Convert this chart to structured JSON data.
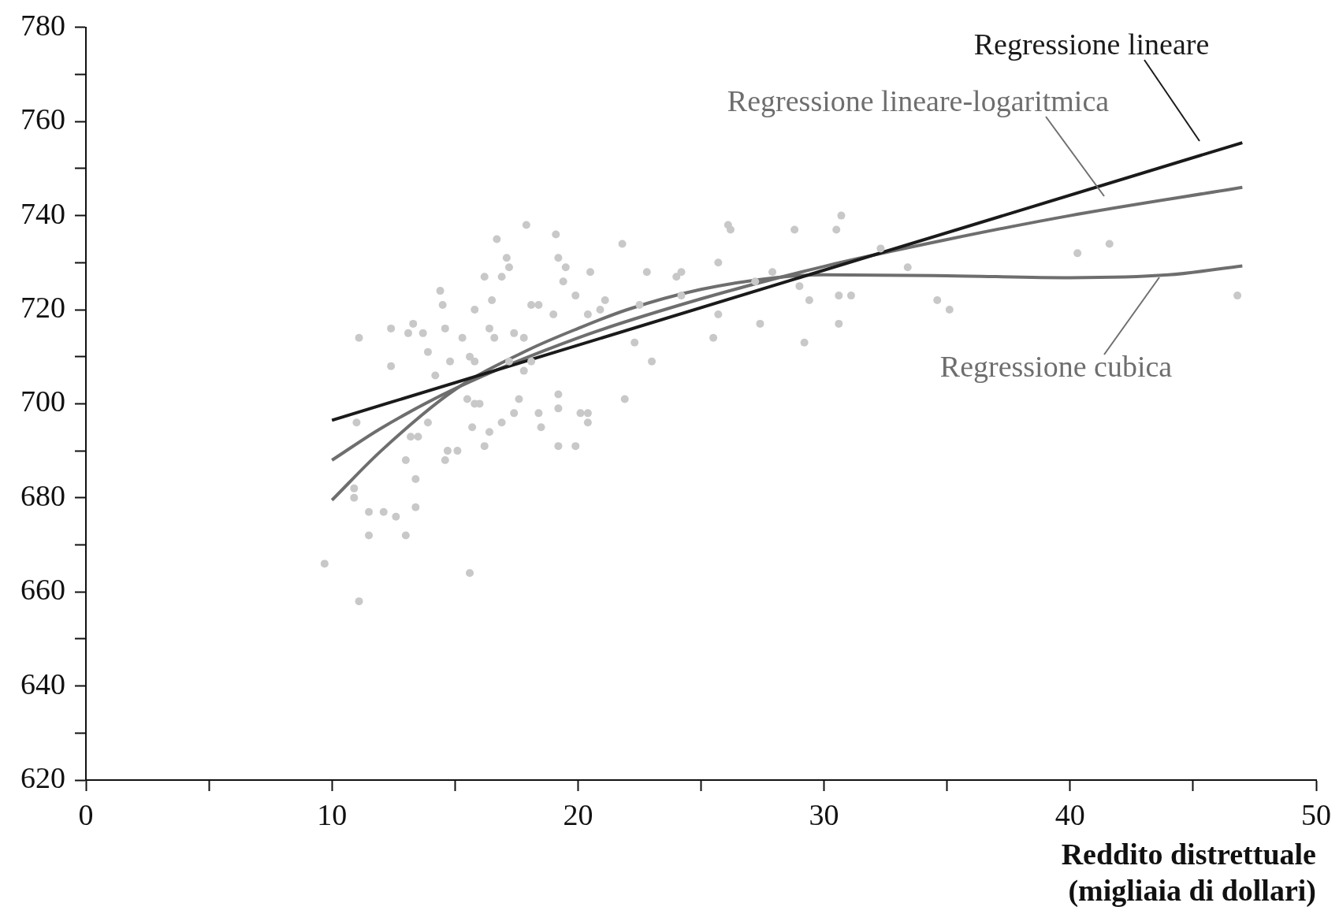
{
  "chart_data": {
    "type": "scatter",
    "xlabel": "Reddito distrettuale (migliaia di dollari)",
    "xlim": [
      0,
      50
    ],
    "ylim": [
      620,
      780
    ],
    "xticks": [
      0,
      {
        "value": 5,
        "label": null
      },
      10,
      {
        "value": 15,
        "label": null
      },
      20,
      {
        "value": 25,
        "label": null
      },
      30,
      {
        "value": 35,
        "label": null
      },
      40,
      {
        "value": 45,
        "label": null
      },
      50
    ],
    "yticks": [
      620,
      {
        "value": 630,
        "label": null
      },
      640,
      {
        "value": 650,
        "label": null
      },
      660,
      {
        "value": 670,
        "label": null
      },
      680,
      {
        "value": 690,
        "label": null
      },
      700,
      {
        "value": 710,
        "label": null
      },
      720,
      {
        "value": 730,
        "label": null
      },
      740,
      {
        "value": 750,
        "label": null
      },
      760,
      {
        "value": 770,
        "label": null
      },
      780
    ],
    "grid": false,
    "series": [
      {
        "type": "scatter",
        "marker": "circle",
        "color": "#c8c8c8",
        "x": [
          9.7,
          11.1,
          15.6,
          11.1,
          11.0,
          10.9,
          10.9,
          11.5,
          11.5,
          12.1,
          12.6,
          13.0,
          13.4,
          12.4,
          13.1,
          13.7,
          13.3,
          12.4,
          13.0,
          13.4,
          13.9,
          14.4,
          14.5,
          14.6,
          14.2,
          14.8,
          13.5,
          13.2,
          13.9,
          14.7,
          14.6,
          15.1,
          15.3,
          15.6,
          15.8,
          15.8,
          16.2,
          16.7,
          16.9,
          17.1,
          17.2,
          16.5,
          16.4,
          16.6,
          15.5,
          15.8,
          16.0,
          15.7,
          16.2,
          16.4,
          16.9,
          17.4,
          17.6,
          17.2,
          17.8,
          18.1,
          17.9,
          18.1,
          18.4,
          17.4,
          17.8,
          19.1,
          19.2,
          19.5,
          19.4,
          19.0,
          19.2,
          19.2,
          18.4,
          18.5,
          19.2,
          19.9,
          20.1,
          20.4,
          20.4,
          20.5,
          19.9,
          20.4,
          20.9,
          21.1,
          21.8,
          21.9,
          22.5,
          22.3,
          22.8,
          23.0,
          24.0,
          24.2,
          24.2,
          25.5,
          25.7,
          25.7,
          26.1,
          26.2,
          27.2,
          27.4,
          27.9,
          28.8,
          29.0,
          29.2,
          29.4,
          30.5,
          30.7,
          30.6,
          31.1,
          30.6,
          32.3,
          33.4,
          34.6,
          35.1,
          40.3,
          41.6,
          46.8
        ],
        "values": [
          666,
          658,
          664,
          714,
          696,
          682,
          680,
          677,
          672,
          677,
          676,
          672,
          678,
          716,
          715,
          715,
          717,
          708,
          688,
          684,
          711,
          724,
          721,
          716,
          706,
          709,
          693,
          693,
          696,
          690,
          688,
          690,
          714,
          710,
          709,
          720,
          727,
          735,
          727,
          731,
          729,
          722,
          716,
          714,
          701,
          700,
          700,
          695,
          691,
          694,
          696,
          698,
          701,
          709,
          707,
          709,
          738,
          721,
          721,
          715,
          714,
          736,
          731,
          729,
          726,
          719,
          702,
          699,
          698,
          695,
          691,
          691,
          698,
          698,
          696,
          728,
          723,
          719,
          720,
          722,
          734,
          701,
          721,
          713,
          728,
          709,
          727,
          728,
          723,
          714,
          730,
          719,
          738,
          737,
          726,
          717,
          728,
          737,
          725,
          713,
          722,
          737,
          740,
          723,
          723,
          717,
          733,
          729,
          722,
          720,
          732,
          734,
          723
        ]
      },
      {
        "type": "line",
        "name": "Regressione lineare",
        "color": "#1a1a1a",
        "x": [
          10,
          47
        ],
        "values": [
          696.5,
          755.5
        ]
      },
      {
        "type": "line",
        "name": "Regressione lineare-logaritmica",
        "color": "#6e6e6e",
        "x": [
          10,
          12,
          15,
          20,
          25,
          30,
          35,
          40,
          47
        ],
        "values": [
          688,
          694.8,
          703.2,
          714,
          722.3,
          729.2,
          734.9,
          740,
          746
        ]
      },
      {
        "type": "line",
        "name": "Regressione cubica",
        "color": "#6e6e6e",
        "x": [
          10,
          12,
          15,
          18,
          20,
          22,
          25,
          28,
          30,
          35,
          40,
          44,
          47
        ],
        "values": [
          679.5,
          690,
          703,
          711.5,
          716,
          720,
          724.3,
          726.8,
          727.4,
          727.2,
          726.8,
          727.4,
          729.3
        ]
      }
    ]
  }
}
